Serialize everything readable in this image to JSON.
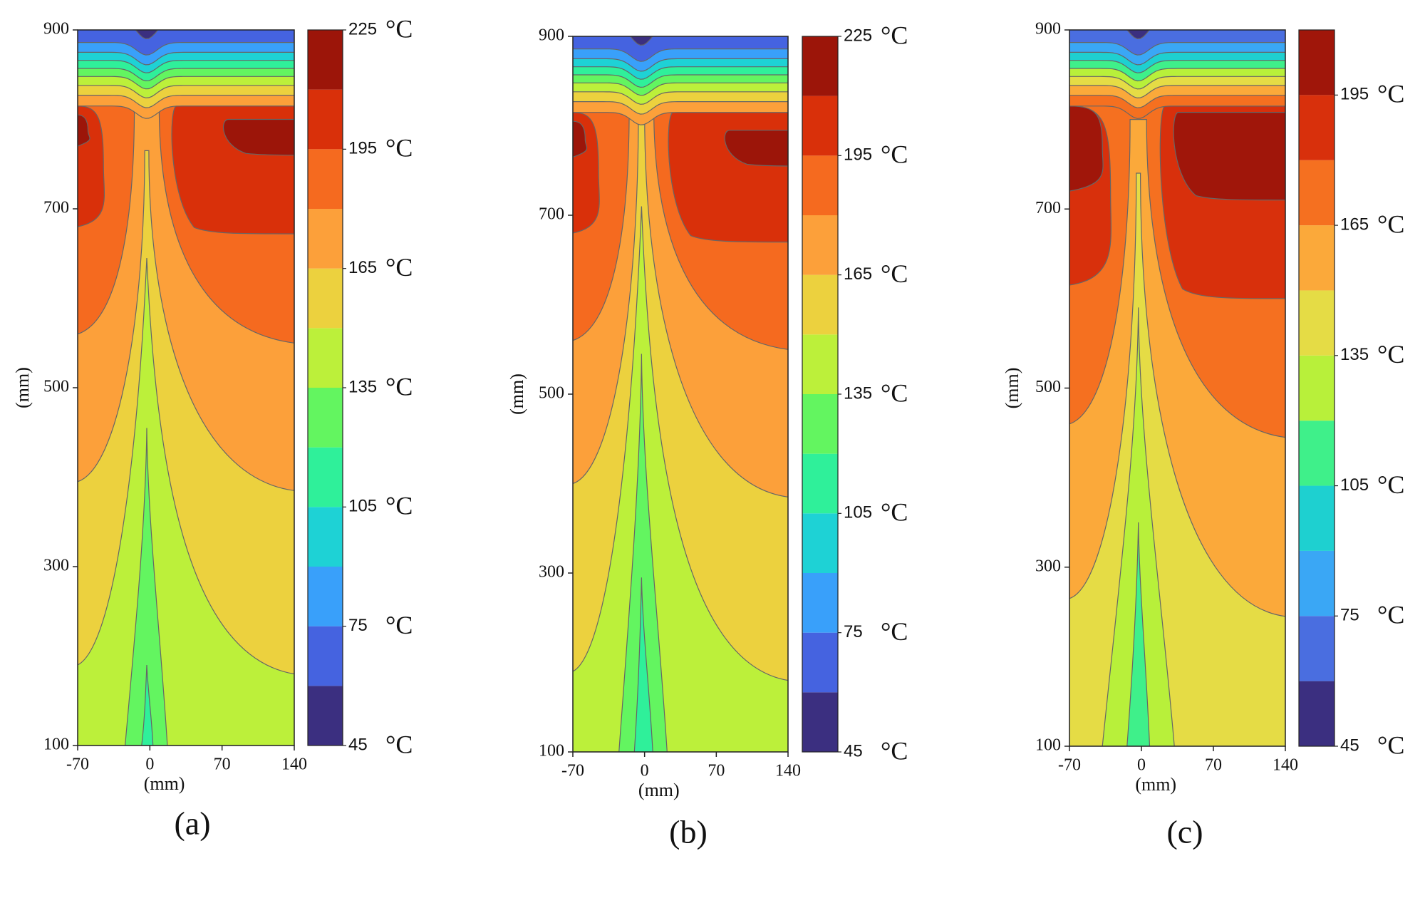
{
  "chart_data": [
    {
      "type": "contour",
      "caption": "(a)",
      "xlabel": "(mm)",
      "ylabel": "(mm)",
      "xlim": [
        -70,
        140
      ],
      "xticks": [
        -70,
        0,
        70,
        140
      ],
      "ylim": [
        100,
        900
      ],
      "yticks": [
        100,
        300,
        500,
        700,
        900
      ],
      "colorbar": {
        "levels": [
          45,
          60,
          75,
          90,
          105,
          120,
          135,
          150,
          165,
          180,
          195,
          210,
          225
        ],
        "colors": [
          "#3b2f80",
          "#4563e0",
          "#39a0fa",
          "#1ed2d5",
          "#2ff09a",
          "#63f560",
          "#bcf03a",
          "#ecd13e",
          "#fca03a",
          "#f56a1f",
          "#d9300a",
          "#9c1509"
        ],
        "ticks": [
          45,
          75,
          105,
          135,
          165,
          195,
          225
        ],
        "unit": "°C"
      }
    },
    {
      "type": "contour",
      "caption": "(b)",
      "xlabel": "(mm)",
      "ylabel": "(mm)",
      "xlim": [
        -70,
        140
      ],
      "xticks": [
        -70,
        0,
        70,
        140
      ],
      "ylim": [
        100,
        900
      ],
      "yticks": [
        100,
        300,
        500,
        700,
        900
      ],
      "colorbar": {
        "levels": [
          45,
          60,
          75,
          90,
          105,
          120,
          135,
          150,
          165,
          180,
          195,
          210,
          225
        ],
        "colors": [
          "#3b2f80",
          "#4563e0",
          "#39a0fa",
          "#1ed2d5",
          "#2ff09a",
          "#63f560",
          "#bcf03a",
          "#ecd13e",
          "#fca03a",
          "#f56a1f",
          "#d9300a",
          "#9c1509"
        ],
        "ticks": [
          45,
          75,
          105,
          135,
          165,
          195,
          225
        ],
        "unit": "°C"
      }
    },
    {
      "type": "contour",
      "caption": "(c)",
      "xlabel": "(mm)",
      "ylabel": "(mm)",
      "xlim": [
        -70,
        140
      ],
      "xticks": [
        -70,
        0,
        70,
        140
      ],
      "ylim": [
        100,
        900
      ],
      "yticks": [
        100,
        300,
        500,
        700,
        900
      ],
      "colorbar": {
        "levels": [
          45,
          60,
          75,
          90,
          105,
          120,
          135,
          150,
          165,
          180,
          195,
          210
        ],
        "colors": [
          "#3b2f80",
          "#4a6ee0",
          "#3aa7f5",
          "#1ed0d0",
          "#3ff08a",
          "#b8f03a",
          "#e5dc45",
          "#fba93a",
          "#f57020",
          "#d8300c",
          "#a0160a"
        ],
        "ticks": [
          45,
          75,
          105,
          135,
          165,
          195
        ],
        "unit": "°C"
      }
    }
  ]
}
